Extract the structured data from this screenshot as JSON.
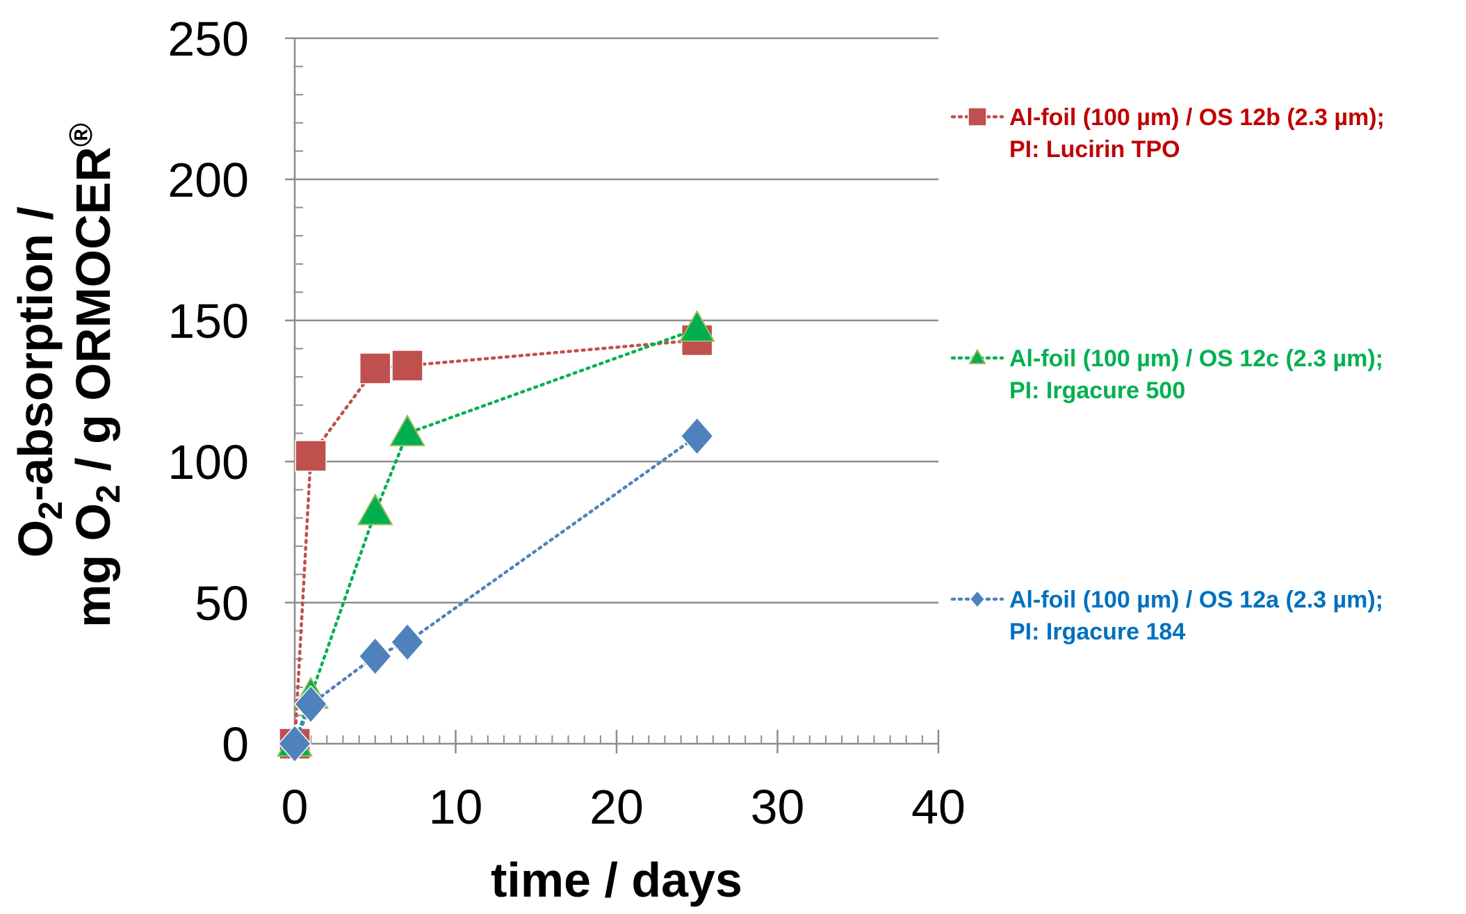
{
  "chart_data": {
    "type": "line",
    "title": "",
    "xlabel": "time / days",
    "ylabel": {
      "line1_main": "O",
      "line1_sub": "2",
      "line1_rest": "-absorption /",
      "line2_a": "mg O",
      "line2_sub": "2",
      "line2_b": " / g ORMOCER",
      "line2_sup": "®"
    },
    "xlim": [
      0,
      40
    ],
    "ylim": [
      0,
      250
    ],
    "xticks": [
      0,
      10,
      20,
      30,
      40
    ],
    "yticks": [
      0,
      50,
      100,
      150,
      200,
      250
    ],
    "x_tick_labels": [
      "0",
      "10",
      "20",
      "30",
      "40"
    ],
    "y_tick_labels": [
      "0",
      "50",
      "100",
      "150",
      "200",
      "250"
    ],
    "grid": "horizontal",
    "legend_position": "right",
    "series": [
      {
        "name_line1": "Al-foil (100 µm) / OS 12b (2.3 µm);",
        "name_line2": "PI: Lucirin TPO",
        "color": "#c0504d",
        "text_color": "#c00000",
        "marker": "square",
        "x": [
          0,
          1,
          5,
          7,
          25
        ],
        "y": [
          0,
          102,
          133,
          134,
          143
        ]
      },
      {
        "name_line1": "Al-foil (100 µm) / OS 12c (2.3 µm);",
        "name_line2": "PI: Irgacure 500",
        "color": "#00b050",
        "text_color": "#00b050",
        "marker": "triangle",
        "x": [
          0,
          1,
          5,
          7,
          25
        ],
        "y": [
          0,
          17,
          82,
          110,
          147
        ]
      },
      {
        "name_line1": "Al-foil (100 µm) / OS 12a (2.3 µm);",
        "name_line2": "PI: Irgacure 184",
        "color": "#4f81bd",
        "text_color": "#0070c0",
        "marker": "diamond",
        "x": [
          0,
          1,
          5,
          7,
          25
        ],
        "y": [
          0,
          14,
          31,
          36,
          109
        ]
      }
    ]
  }
}
